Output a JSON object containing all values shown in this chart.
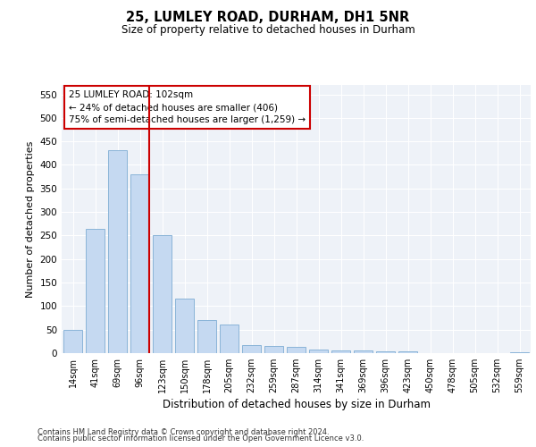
{
  "title_line1": "25, LUMLEY ROAD, DURHAM, DH1 5NR",
  "title_line2": "Size of property relative to detached houses in Durham",
  "xlabel": "Distribution of detached houses by size in Durham",
  "ylabel": "Number of detached properties",
  "categories": [
    "14sqm",
    "41sqm",
    "69sqm",
    "96sqm",
    "123sqm",
    "150sqm",
    "178sqm",
    "205sqm",
    "232sqm",
    "259sqm",
    "287sqm",
    "314sqm",
    "341sqm",
    "369sqm",
    "396sqm",
    "423sqm",
    "450sqm",
    "478sqm",
    "505sqm",
    "532sqm",
    "559sqm"
  ],
  "bar_heights": [
    50,
    265,
    432,
    380,
    250,
    115,
    70,
    60,
    17,
    15,
    13,
    7,
    5,
    5,
    3,
    3,
    0,
    0,
    0,
    0,
    2
  ],
  "bar_color": "#c5d9f1",
  "bar_edge_color": "#8ab4d8",
  "vline_color": "#cc0000",
  "annotation_text": "25 LUMLEY ROAD: 102sqm\n← 24% of detached houses are smaller (406)\n75% of semi-detached houses are larger (1,259) →",
  "annotation_box_color": "#ffffff",
  "annotation_box_edge_color": "#cc0000",
  "ylim": [
    0,
    570
  ],
  "yticks": [
    0,
    50,
    100,
    150,
    200,
    250,
    300,
    350,
    400,
    450,
    500,
    550
  ],
  "bg_color": "#eef2f8",
  "grid_color": "#ffffff",
  "footer_line1": "Contains HM Land Registry data © Crown copyright and database right 2024.",
  "footer_line2": "Contains public sector information licensed under the Open Government Licence v3.0."
}
